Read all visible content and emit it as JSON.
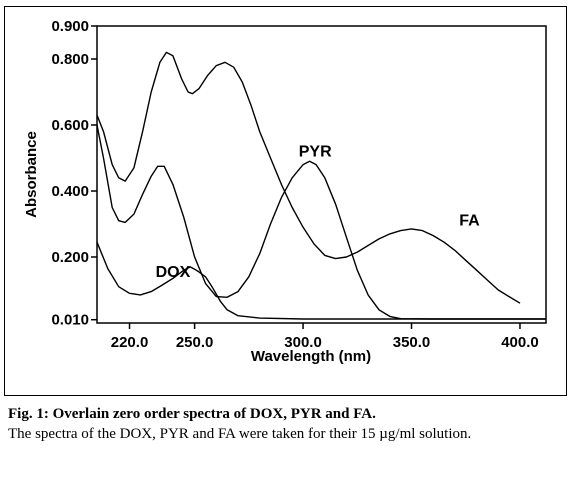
{
  "chart_data": {
    "type": "line",
    "xlabel": "Wavelength (nm)",
    "ylabel": "Absorbance",
    "xlim": [
      205,
      412
    ],
    "ylim": [
      0.0,
      0.9
    ],
    "x_ticks": [
      220,
      250,
      300,
      350,
      400
    ],
    "x_tick_labels": [
      "220.0",
      "250.0",
      "300.0",
      "350.0",
      "400.0"
    ],
    "y_ticks": [
      0.01,
      0.2,
      0.4,
      0.6,
      0.8,
      0.9
    ],
    "y_tick_labels": [
      "0.010",
      "0.200",
      "0.400",
      "0.600",
      "0.800",
      "0.900"
    ],
    "grid": false,
    "line_color": "#000000",
    "series": [
      {
        "name": "DOX",
        "label_at": [
          232,
          0.14
        ],
        "points": [
          [
            205,
            0.245
          ],
          [
            210,
            0.165
          ],
          [
            215,
            0.11
          ],
          [
            220,
            0.09
          ],
          [
            225,
            0.085
          ],
          [
            230,
            0.095
          ],
          [
            235,
            0.115
          ],
          [
            240,
            0.135
          ],
          [
            245,
            0.16
          ],
          [
            248,
            0.17
          ],
          [
            250,
            0.163
          ],
          [
            252,
            0.155
          ],
          [
            255,
            0.14
          ],
          [
            258,
            0.11
          ],
          [
            262,
            0.065
          ],
          [
            265,
            0.04
          ],
          [
            270,
            0.022
          ],
          [
            280,
            0.015
          ],
          [
            300,
            0.012
          ],
          [
            350,
            0.012
          ],
          [
            412,
            0.012
          ]
        ]
      },
      {
        "name": "PYR",
        "label_at": [
          298,
          0.505
        ],
        "points": [
          [
            205,
            0.6
          ],
          [
            208,
            0.5
          ],
          [
            212,
            0.35
          ],
          [
            215,
            0.31
          ],
          [
            218,
            0.305
          ],
          [
            222,
            0.33
          ],
          [
            226,
            0.39
          ],
          [
            230,
            0.445
          ],
          [
            233,
            0.475
          ],
          [
            236,
            0.475
          ],
          [
            240,
            0.42
          ],
          [
            245,
            0.32
          ],
          [
            250,
            0.2
          ],
          [
            255,
            0.12
          ],
          [
            260,
            0.08
          ],
          [
            265,
            0.078
          ],
          [
            270,
            0.095
          ],
          [
            275,
            0.14
          ],
          [
            280,
            0.21
          ],
          [
            285,
            0.3
          ],
          [
            290,
            0.38
          ],
          [
            295,
            0.44
          ],
          [
            300,
            0.48
          ],
          [
            303,
            0.49
          ],
          [
            306,
            0.48
          ],
          [
            310,
            0.44
          ],
          [
            315,
            0.36
          ],
          [
            320,
            0.26
          ],
          [
            325,
            0.16
          ],
          [
            330,
            0.085
          ],
          [
            335,
            0.04
          ],
          [
            340,
            0.02
          ],
          [
            345,
            0.013
          ],
          [
            360,
            0.012
          ],
          [
            412,
            0.012
          ]
        ]
      },
      {
        "name": "FA",
        "label_at": [
          372,
          0.295
        ],
        "points": [
          [
            205,
            0.63
          ],
          [
            208,
            0.58
          ],
          [
            212,
            0.48
          ],
          [
            215,
            0.44
          ],
          [
            218,
            0.43
          ],
          [
            222,
            0.47
          ],
          [
            226,
            0.58
          ],
          [
            230,
            0.7
          ],
          [
            234,
            0.79
          ],
          [
            237,
            0.82
          ],
          [
            240,
            0.81
          ],
          [
            244,
            0.74
          ],
          [
            247,
            0.7
          ],
          [
            249,
            0.695
          ],
          [
            252,
            0.71
          ],
          [
            256,
            0.75
          ],
          [
            260,
            0.78
          ],
          [
            264,
            0.79
          ],
          [
            268,
            0.775
          ],
          [
            272,
            0.73
          ],
          [
            276,
            0.66
          ],
          [
            280,
            0.58
          ],
          [
            285,
            0.5
          ],
          [
            290,
            0.42
          ],
          [
            295,
            0.35
          ],
          [
            300,
            0.29
          ],
          [
            305,
            0.24
          ],
          [
            310,
            0.205
          ],
          [
            315,
            0.195
          ],
          [
            320,
            0.2
          ],
          [
            325,
            0.215
          ],
          [
            330,
            0.235
          ],
          [
            335,
            0.255
          ],
          [
            340,
            0.27
          ],
          [
            345,
            0.28
          ],
          [
            350,
            0.285
          ],
          [
            355,
            0.28
          ],
          [
            360,
            0.265
          ],
          [
            365,
            0.245
          ],
          [
            370,
            0.22
          ],
          [
            375,
            0.19
          ],
          [
            380,
            0.16
          ],
          [
            385,
            0.13
          ],
          [
            390,
            0.1
          ],
          [
            395,
            0.08
          ],
          [
            400,
            0.06
          ]
        ]
      }
    ]
  },
  "caption": {
    "line1": "Fig. 1: Overlain zero order spectra of DOX, PYR and FA.",
    "line2": "The spectra of the DOX, PYR and FA were taken for their 15 µg/ml solution."
  }
}
